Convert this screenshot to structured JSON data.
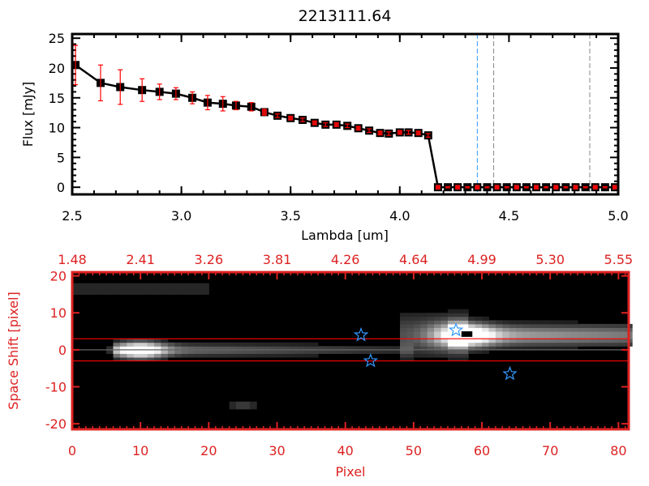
{
  "chart_data": [
    {
      "type": "line",
      "title": "2213111.64",
      "xlabel": "Lambda [um]",
      "ylabel": "Flux [mJy]",
      "xlim": [
        2.5,
        5.0
      ],
      "ylim": [
        -1.2,
        25.7
      ],
      "xticks": [
        "2.5",
        "3.0",
        "3.5",
        "4.0",
        "4.5",
        "5.0"
      ],
      "yticks": [
        "0",
        "5",
        "10",
        "15",
        "20",
        "25"
      ],
      "grid": false,
      "x": [
        2.515,
        2.63,
        2.72,
        2.82,
        2.9,
        2.975,
        3.05,
        3.12,
        3.19,
        3.25,
        3.32,
        3.38,
        3.44,
        3.5,
        3.555,
        3.61,
        3.66,
        3.71,
        3.76,
        3.81,
        3.86,
        3.91,
        3.95,
        4.0,
        4.04,
        4.085,
        4.13,
        4.175,
        4.22,
        4.265,
        4.31,
        4.355,
        4.4,
        4.445,
        4.49,
        4.535,
        4.58,
        4.625,
        4.67,
        4.715,
        4.76,
        4.805,
        4.85,
        4.895,
        4.94,
        4.985
      ],
      "y": [
        20.5,
        17.5,
        16.8,
        16.3,
        16.0,
        15.7,
        15.0,
        14.2,
        14.0,
        13.7,
        13.5,
        12.6,
        12.0,
        11.6,
        11.3,
        10.8,
        10.5,
        10.5,
        10.3,
        9.9,
        9.5,
        9.1,
        9.0,
        9.2,
        9.2,
        9.1,
        8.7,
        0,
        0,
        0,
        0,
        0,
        0,
        0,
        0,
        0,
        0,
        0,
        0,
        0,
        0,
        0,
        0,
        0,
        0,
        0
      ],
      "yerr": [
        3.3,
        3.0,
        2.9,
        1.9,
        1.3,
        1.0,
        1.0,
        1.2,
        1.2,
        0.7,
        0.7,
        0.5,
        0.3,
        0.3,
        0.3,
        0.3,
        0.3,
        0.3,
        0.3,
        0.3,
        0.3,
        0.3,
        0.3,
        0.3,
        0.3,
        0.3,
        0.3,
        0.1,
        0.1,
        0.1,
        0.1,
        0.1,
        0.1,
        0.1,
        0.1,
        0.1,
        0.1,
        0.1,
        0.1,
        0.1,
        0.1,
        0.1,
        0.1,
        0.1,
        0.1,
        0.1
      ],
      "vlines": [
        {
          "x": 4.355,
          "color": "#3399ff",
          "style": "dashed"
        },
        {
          "x": 4.43,
          "color": "#888888",
          "style": "dashed"
        },
        {
          "x": 4.87,
          "color": "#888888",
          "style": "dashed"
        }
      ],
      "hline": {
        "y": 0,
        "from_x": 4.175,
        "color": "#ff0000",
        "style": "dashed"
      },
      "line_color": "#000000",
      "errorbar_color": "#ff0000"
    },
    {
      "type": "heatmap",
      "xlabel": "Pixel",
      "ylabel": "Space Shift [pixel]",
      "xlim": [
        0,
        81.5
      ],
      "ylim": [
        -21.5,
        21
      ],
      "xticks": [
        "0",
        "10",
        "20",
        "30",
        "40",
        "50",
        "60",
        "70",
        "80"
      ],
      "yticks": [
        "-20",
        "-10",
        "0",
        "10",
        "20"
      ],
      "top_xticks": [
        "1.48",
        "2.41",
        "3.26",
        "3.81",
        "4.26",
        "4.64",
        "4.99",
        "5.30",
        "5.55"
      ],
      "colormap": "grayscale",
      "axis_color": "#dd2222",
      "hlines": [
        {
          "y": 3,
          "color": "#ff0000"
        },
        {
          "y": -3,
          "color": "#ff0000"
        },
        {
          "y": 0,
          "color": "#666666"
        }
      ],
      "markers": {
        "symbol": "star",
        "color": "#3399ff",
        "points": [
          [
            42.3,
            4
          ],
          [
            43.7,
            -3
          ],
          [
            56.2,
            5.3
          ],
          [
            64.1,
            -6.5
          ]
        ]
      }
    }
  ]
}
